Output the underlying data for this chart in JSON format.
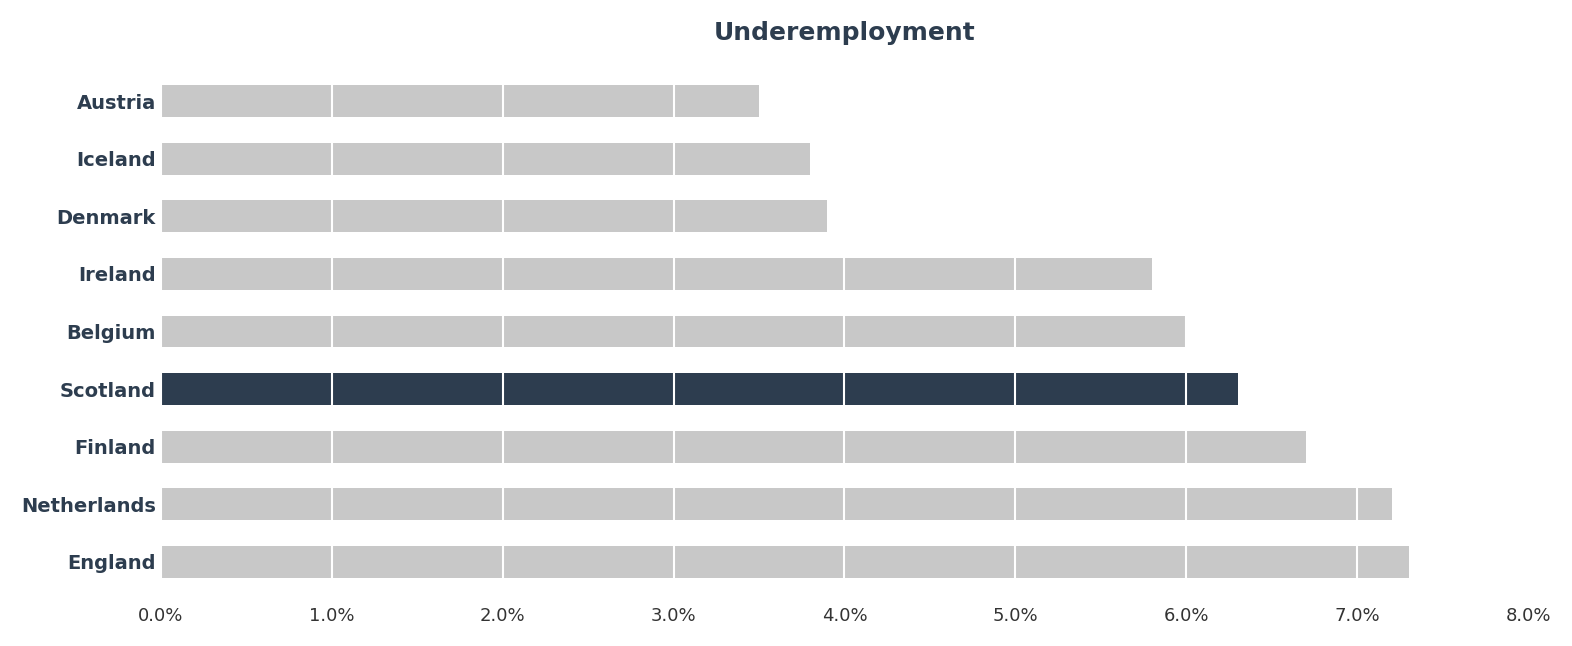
{
  "title": "Underemployment",
  "categories": [
    "England",
    "Netherlands",
    "Finland",
    "Scotland",
    "Belgium",
    "Ireland",
    "Denmark",
    "Iceland",
    "Austria"
  ],
  "values": [
    7.3,
    7.2,
    6.7,
    6.3,
    6.0,
    5.8,
    3.9,
    3.8,
    3.5
  ],
  "bar_colors": [
    "#c8c8c8",
    "#c8c8c8",
    "#c8c8c8",
    "#2d3d4f",
    "#c8c8c8",
    "#c8c8c8",
    "#c8c8c8",
    "#c8c8c8",
    "#c8c8c8"
  ],
  "highlight_index": 3,
  "xlim": [
    0,
    8.0
  ],
  "xticks": [
    0.0,
    1.0,
    2.0,
    3.0,
    4.0,
    5.0,
    6.0,
    7.0,
    8.0
  ],
  "title_fontsize": 18,
  "label_fontsize": 14,
  "tick_fontsize": 13,
  "background_color": "#ffffff",
  "grid_color": "#ffffff",
  "bar_height": 0.55,
  "label_color": "#2d3d4f",
  "tick_color": "#333333"
}
